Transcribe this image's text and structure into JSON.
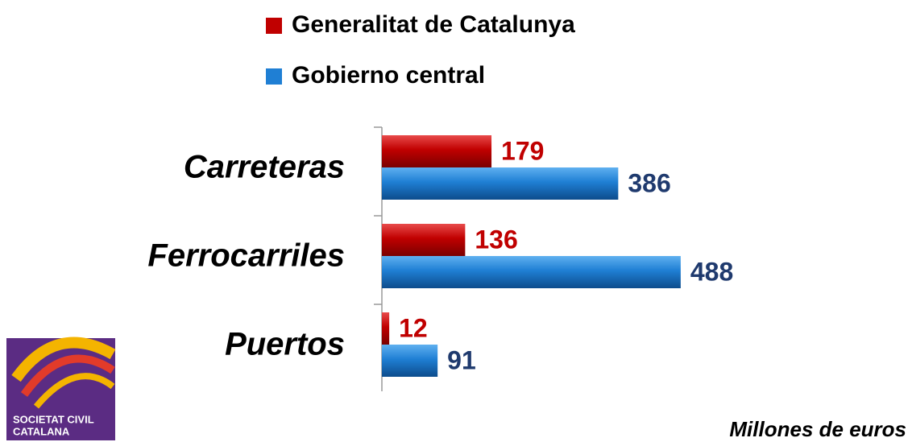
{
  "chart_data": {
    "type": "bar",
    "orientation": "horizontal",
    "categories": [
      "Carreteras",
      "Ferrocarriles",
      "Puertos"
    ],
    "series": [
      {
        "name": "Generalitat de Catalunya",
        "color": "#c00000",
        "label_color": "#c00000",
        "values": [
          179,
          136,
          12
        ]
      },
      {
        "name": "Gobierno central",
        "color": "#1f7fd4",
        "label_color": "#1f3a6e",
        "values": [
          386,
          488,
          91
        ]
      }
    ],
    "xlim": [
      0,
      700
    ],
    "note": "Millones de euros"
  },
  "logo": {
    "line1": "SOCIETAT CIVIL",
    "line2": "CATALANA"
  }
}
